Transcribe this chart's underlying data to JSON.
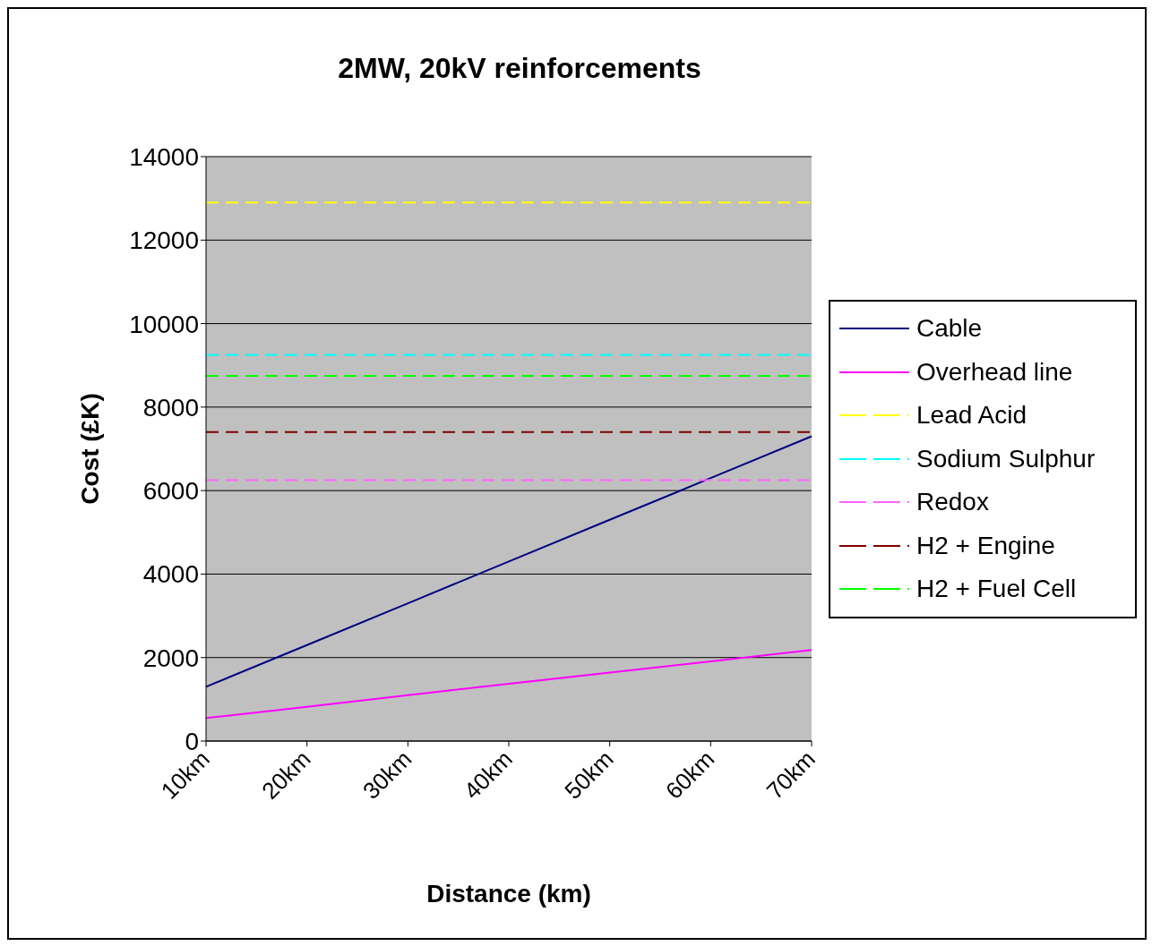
{
  "chart_data": {
    "type": "line",
    "title": "2MW, 20kV reinforcements",
    "xlabel": "Distance (km)",
    "ylabel": "Cost (£K)",
    "categories": [
      "10km",
      "20km",
      "30km",
      "40km",
      "50km",
      "60km",
      "70km"
    ],
    "series": [
      {
        "name": "Cable",
        "color": "#000080",
        "values": [
          1300,
          2300,
          3300,
          4300,
          5300,
          6300,
          7300
        ]
      },
      {
        "name": "Overhead line",
        "color": "#ff00ff",
        "values": [
          550,
          820,
          1100,
          1370,
          1640,
          1910,
          2180
        ]
      },
      {
        "name": "Lead Acid",
        "color": "#ffff00",
        "line_style": "dashed",
        "values": [
          12900,
          12900,
          12900,
          12900,
          12900,
          12900,
          12900
        ]
      },
      {
        "name": "Sodium Sulphur",
        "color": "#00ffff",
        "line_style": "dashed",
        "values": [
          9250,
          9250,
          9250,
          9250,
          9250,
          9250,
          9250
        ]
      },
      {
        "name": "Redox",
        "color": "#ff66ff",
        "line_style": "dashed",
        "values": [
          6250,
          6250,
          6250,
          6250,
          6250,
          6250,
          6250
        ]
      },
      {
        "name": "H2 + Engine",
        "color": "#800000",
        "line_style": "dashed",
        "values": [
          7400,
          7400,
          7400,
          7400,
          7400,
          7400,
          7400
        ]
      },
      {
        "name": "H2 + Fuel Cell",
        "color": "#00ff00",
        "line_style": "dashed",
        "values": [
          8750,
          8750,
          8750,
          8750,
          8750,
          8750,
          8750
        ]
      }
    ],
    "ylim": [
      0,
      14000
    ],
    "yticks": [
      0,
      2000,
      4000,
      6000,
      8000,
      10000,
      12000,
      14000
    ],
    "grid": "y",
    "legend": "right",
    "marker": "none",
    "line_style": "solid"
  }
}
